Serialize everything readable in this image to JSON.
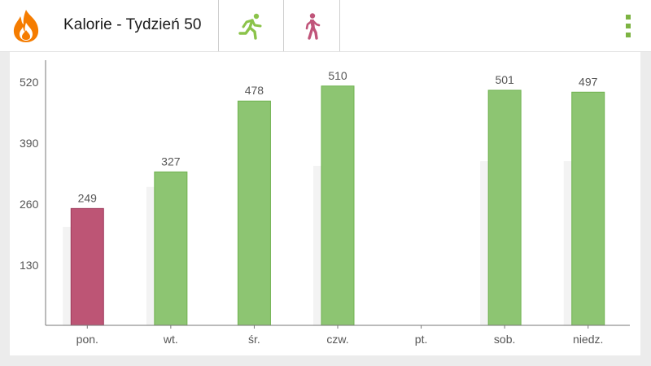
{
  "header": {
    "title": "Kalorie - Tydzień 50",
    "logo_icon": "flame-icon",
    "tabs": [
      {
        "icon": "running-person-icon",
        "color": "#8bc34a"
      },
      {
        "icon": "walking-person-icon",
        "color": "#c0557a"
      }
    ],
    "menu_icon": "more-vert-icon"
  },
  "colors": {
    "accent_green": "#8dc572",
    "accent_pink": "#bd5575",
    "ghost_bar": "#f3f3f3",
    "axis": "#777777",
    "text": "#555555"
  },
  "chart_data": {
    "type": "bar",
    "categories": [
      "pon.",
      "wt.",
      "śr.",
      "czw.",
      "pt.",
      "sob.",
      "niedz."
    ],
    "values": [
      249,
      327,
      478,
      510,
      null,
      501,
      497
    ],
    "value_labels": [
      "249",
      "327",
      "478",
      "510",
      "",
      "501",
      "497"
    ],
    "background_values": [
      210,
      295,
      null,
      340,
      null,
      350,
      350
    ],
    "highlight": [
      true,
      false,
      false,
      false,
      false,
      false,
      false
    ],
    "y_ticks": [
      130,
      260,
      390,
      520
    ],
    "ylim": [
      0,
      560
    ],
    "grid": false,
    "legend": "none"
  }
}
